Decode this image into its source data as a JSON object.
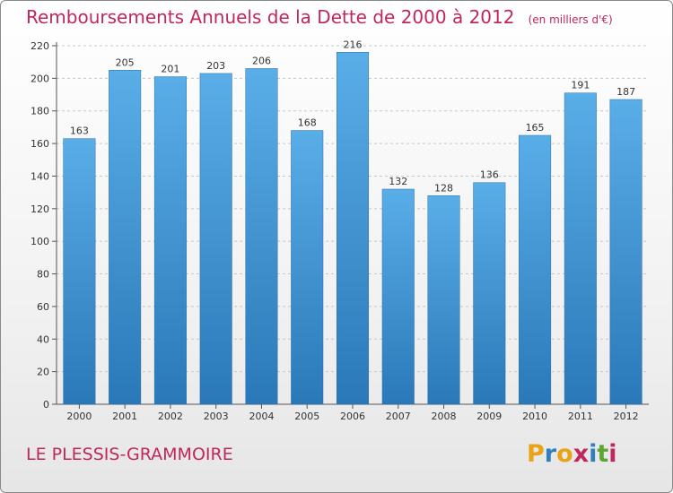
{
  "chart_data": {
    "type": "bar",
    "title": "Remboursements Annuels de la Dette de 2000 à 2012",
    "subtitle": "(en milliers d'€)",
    "categories": [
      "2000",
      "2001",
      "2002",
      "2003",
      "2004",
      "2005",
      "2006",
      "2007",
      "2008",
      "2009",
      "2010",
      "2011",
      "2012"
    ],
    "values": [
      163,
      205,
      201,
      203,
      206,
      168,
      216,
      132,
      128,
      136,
      165,
      191,
      187
    ],
    "ylim": [
      0,
      220
    ],
    "yticks": [
      0,
      20,
      40,
      60,
      80,
      100,
      120,
      140,
      160,
      180,
      200,
      220
    ],
    "grid": true,
    "xlabel": "",
    "ylabel": "",
    "bar_color_top": "#5aaee8",
    "bar_color_bottom": "#2a78b8"
  },
  "footer": {
    "commune": "LE PLESSIS-GRAMMOIRE",
    "logo_letters": [
      "P",
      "r",
      "o",
      "x",
      "i",
      "t",
      "i"
    ],
    "logo_colors": [
      "#e8a317",
      "#2f7fc1",
      "#e8a317",
      "#c0275c",
      "#2f7fc1",
      "#5aa832",
      "#c0275c"
    ]
  }
}
